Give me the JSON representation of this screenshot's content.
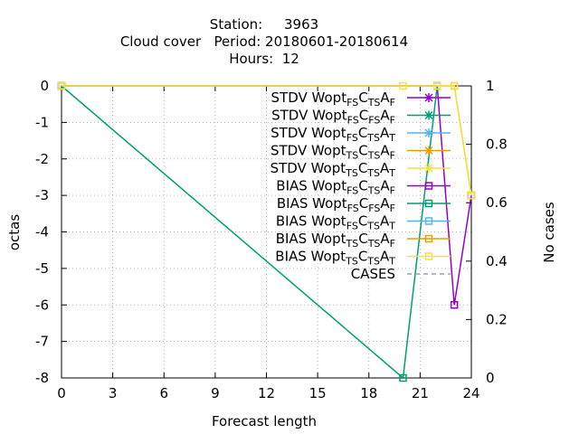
{
  "chart_data": {
    "type": "line",
    "title_lines": [
      "Station:     3963",
      "Cloud cover   Period: 20180601-20180614",
      "Hours:  12"
    ],
    "xlabel": "Forecast length",
    "ylabel": "octas",
    "y2label": "No cases",
    "xlim": [
      0,
      24
    ],
    "ylim": [
      -8,
      0
    ],
    "y2lim": [
      0,
      1
    ],
    "x_ticks": [
      0,
      3,
      6,
      9,
      12,
      15,
      18,
      21,
      24
    ],
    "y_ticks": [
      0,
      -1,
      -2,
      -3,
      -4,
      -5,
      -6,
      -7,
      -8
    ],
    "y2_ticks": [
      1,
      0.8,
      0.6,
      0.4,
      0.2,
      0
    ],
    "grid": true,
    "legend_position": "top-right",
    "series": [
      {
        "name": "STDV Wopt_FS C_TS A_F",
        "label": {
          "main": "STDV Wopt",
          "s1": "FS",
          "c": "C",
          "s2": "TS",
          "a": "A",
          "s3": "F"
        },
        "color": "#9400d3",
        "marker": "x-star",
        "dash": false,
        "axis": "y",
        "x": [],
        "y": []
      },
      {
        "name": "STDV Wopt_FS C_FS A_F",
        "label": {
          "main": "STDV Wopt",
          "s1": "FS",
          "c": "C",
          "s2": "FS",
          "a": "A",
          "s3": "F"
        },
        "color": "#009e73",
        "marker": "x-star",
        "dash": false,
        "axis": "y",
        "x": [],
        "y": []
      },
      {
        "name": "STDV Wopt_FS C_TS A_T",
        "label": {
          "main": "STDV Wopt",
          "s1": "FS",
          "c": "C",
          "s2": "TS",
          "a": "A",
          "s3": "T"
        },
        "color": "#56b4e9",
        "marker": "x-star",
        "dash": false,
        "axis": "y",
        "x": [],
        "y": []
      },
      {
        "name": "STDV Wopt_TS C_TS A_F",
        "label": {
          "main": "STDV Wopt",
          "s1": "TS",
          "c": "C",
          "s2": "TS",
          "a": "A",
          "s3": "F"
        },
        "color": "#e69f00",
        "marker": "x-star",
        "dash": false,
        "axis": "y",
        "x": [],
        "y": []
      },
      {
        "name": "STDV Wopt_TS C_TS A_T",
        "label": {
          "main": "STDV Wopt",
          "s1": "TS",
          "c": "C",
          "s2": "TS",
          "a": "A",
          "s3": "T"
        },
        "color": "#f0e442",
        "marker": "x-star",
        "dash": false,
        "axis": "y",
        "x": [],
        "y": []
      },
      {
        "name": "BIAS Wopt_FS C_TS A_F",
        "label": {
          "main": "BIAS Wopt",
          "s1": "FS",
          "c": "C",
          "s2": "TS",
          "a": "A",
          "s3": "F"
        },
        "color": "#9400d3",
        "marker": "square",
        "dash": false,
        "axis": "y",
        "x": [
          0,
          22,
          23,
          24
        ],
        "y": [
          0,
          0,
          -6,
          -3
        ]
      },
      {
        "name": "BIAS Wopt_FS C_FS A_F",
        "label": {
          "main": "BIAS Wopt",
          "s1": "FS",
          "c": "C",
          "s2": "FS",
          "a": "A",
          "s3": "F"
        },
        "color": "#009e73",
        "marker": "square",
        "dash": false,
        "axis": "y",
        "x": [
          0,
          20,
          22
        ],
        "y": [
          0,
          -8,
          0
        ]
      },
      {
        "name": "BIAS Wopt_FS C_TS A_T",
        "label": {
          "main": "BIAS Wopt",
          "s1": "FS",
          "c": "C",
          "s2": "TS",
          "a": "A",
          "s3": "T"
        },
        "color": "#56b4e9",
        "marker": "square",
        "dash": false,
        "axis": "y",
        "x": [],
        "y": []
      },
      {
        "name": "BIAS Wopt_TS C_TS A_F",
        "label": {
          "main": "BIAS Wopt",
          "s1": "TS",
          "c": "C",
          "s2": "TS",
          "a": "A",
          "s3": "F"
        },
        "color": "#e69f00",
        "marker": "square",
        "dash": false,
        "axis": "y",
        "x": [
          0,
          23,
          24
        ],
        "y": [
          0,
          0,
          -3
        ]
      },
      {
        "name": "BIAS Wopt_TS C_TS A_T",
        "label": {
          "main": "BIAS Wopt",
          "s1": "TS",
          "c": "C",
          "s2": "TS",
          "a": "A",
          "s3": "T"
        },
        "color": "#f0e442",
        "marker": "square",
        "dash": false,
        "axis": "y",
        "x": [
          0,
          20,
          22,
          23,
          24
        ],
        "y": [
          0,
          0,
          0,
          0,
          -3
        ]
      },
      {
        "name": "CASES",
        "label": {
          "main": "CASES"
        },
        "color": "#a0a0a0",
        "marker": "none",
        "dash": true,
        "axis": "y2",
        "x": [],
        "y": []
      }
    ]
  }
}
